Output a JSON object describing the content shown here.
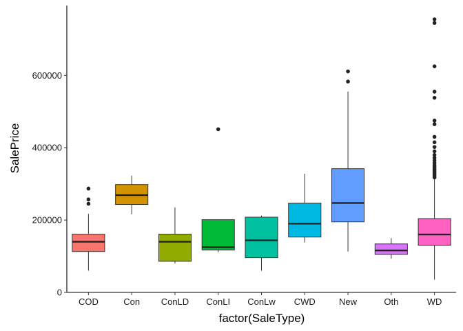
{
  "chart_data": {
    "type": "box",
    "title": "",
    "xlabel": "factor(SaleType)",
    "ylabel": "SalePrice",
    "ylim": [
      0,
      755000
    ],
    "y_ticks": [
      0,
      200000,
      400000,
      600000
    ],
    "y_tick_labels": [
      "0",
      "200000",
      "400000",
      "600000"
    ],
    "grid": false,
    "legend": "none",
    "categories": [
      "COD",
      "Con",
      "ConLD",
      "ConLI",
      "ConLw",
      "CWD",
      "New",
      "Oth",
      "WD"
    ],
    "boxes": [
      {
        "category": "COD",
        "color": "#F8766D",
        "whisker_low": 60000,
        "q1": 113000,
        "median": 140000,
        "q3": 161000,
        "whisker_high": 217000,
        "outliers": [
          245000,
          257000,
          287000
        ]
      },
      {
        "category": "Con",
        "color": "#D39200",
        "whisker_low": 216000,
        "q1": 243000,
        "median": 269000,
        "q3": 298000,
        "whisker_high": 323000,
        "outliers": []
      },
      {
        "category": "ConLD",
        "color": "#93AA00",
        "whisker_low": 80000,
        "q1": 86000,
        "median": 140000,
        "q3": 161000,
        "whisker_high": 235000,
        "outliers": []
      },
      {
        "category": "ConLI",
        "color": "#00BA38",
        "whisker_low": 111000,
        "q1": 117000,
        "median": 125000,
        "q3": 201000,
        "whisker_high": 201000,
        "outliers": [
          451000
        ]
      },
      {
        "category": "ConLw",
        "color": "#00C19F",
        "whisker_low": 60000,
        "q1": 96000,
        "median": 144000,
        "q3": 208000,
        "whisker_high": 212000,
        "outliers": []
      },
      {
        "category": "CWD",
        "color": "#00B9E3",
        "whisker_low": 138000,
        "q1": 153000,
        "median": 190000,
        "q3": 247000,
        "whisker_high": 328000,
        "outliers": []
      },
      {
        "category": "New",
        "color": "#619CFF",
        "whisker_low": 113000,
        "q1": 195000,
        "median": 247000,
        "q3": 342000,
        "whisker_high": 555000,
        "outliers": [
          583000,
          611000
        ]
      },
      {
        "category": "Oth",
        "color": "#DB72FB",
        "whisker_low": 93000,
        "q1": 105000,
        "median": 116000,
        "q3": 134000,
        "whisker_high": 150000,
        "outliers": []
      },
      {
        "category": "WD",
        "color": "#FF61C3",
        "whisker_low": 35000,
        "q1": 130000,
        "median": 160000,
        "q3": 204000,
        "whisker_high": 315000,
        "outliers": [
          318000,
          322000,
          326000,
          330000,
          334000,
          338000,
          342000,
          347000,
          352000,
          358000,
          365000,
          372000,
          380000,
          390000,
          402000,
          415000,
          430000,
          465000,
          475000,
          538000,
          555000,
          625000,
          745000,
          755000
        ]
      }
    ],
    "colors": {
      "box_outline": "#333333",
      "median_line": "#222222",
      "outlier": "#222222",
      "axis": "#000000"
    }
  }
}
